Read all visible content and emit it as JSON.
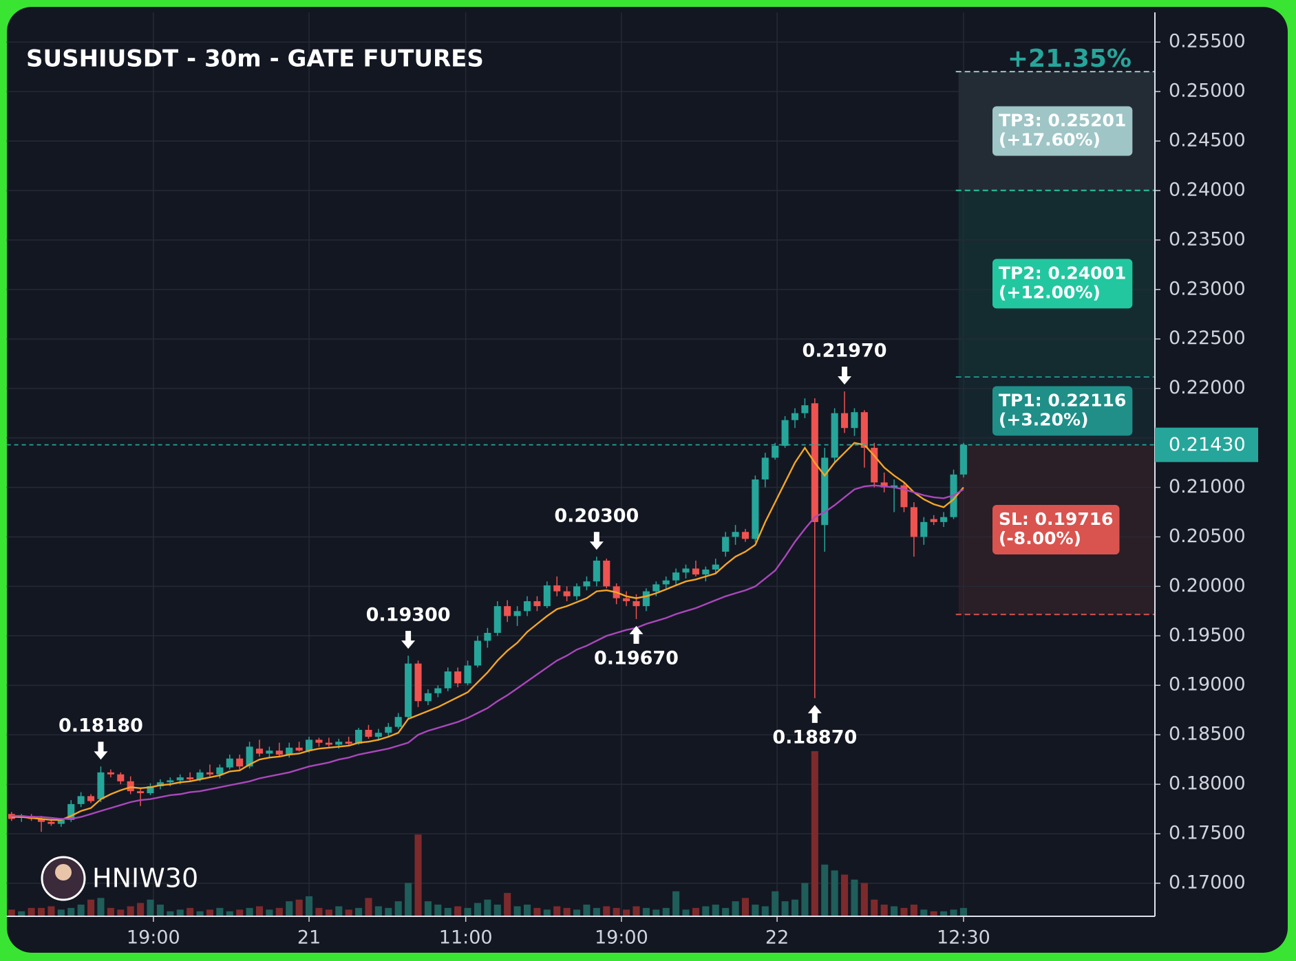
{
  "chart_data": {
    "type": "candlestick",
    "title": "SUSHIUSDT - 30m - GATE FUTURES",
    "target_gain": "+21.35%",
    "watermark": "HNIW30",
    "up_color": "#26a69a",
    "down_color": "#ef5350",
    "volume_up_color": "#1f5e5a",
    "volume_down_color": "#7d2a2c",
    "grid": true,
    "ylim": [
      0.16666,
      0.258
    ],
    "xlim": [
      -0.5,
      115.3
    ],
    "yticks": [
      {
        "value": 0.17,
        "label": "0.17000"
      },
      {
        "value": 0.175,
        "label": "0.17500"
      },
      {
        "value": 0.18,
        "label": "0.18000"
      },
      {
        "value": 0.185,
        "label": "0.18500"
      },
      {
        "value": 0.19,
        "label": "0.19000"
      },
      {
        "value": 0.195,
        "label": "0.19500"
      },
      {
        "value": 0.2,
        "label": "0.20000"
      },
      {
        "value": 0.205,
        "label": "0.20500"
      },
      {
        "value": 0.21,
        "label": "0.21000"
      },
      {
        "value": 0.215,
        "label": "0.21500"
      },
      {
        "value": 0.22,
        "label": "0.22000"
      },
      {
        "value": 0.225,
        "label": "0.22500"
      },
      {
        "value": 0.23,
        "label": "0.23000"
      },
      {
        "value": 0.235,
        "label": "0.23500"
      },
      {
        "value": 0.24,
        "label": "0.24000"
      },
      {
        "value": 0.245,
        "label": "0.24500"
      },
      {
        "value": 0.25,
        "label": "0.25000"
      },
      {
        "value": 0.255,
        "label": "0.25500"
      }
    ],
    "xticks": [
      {
        "value": 14.3,
        "label": "19:00"
      },
      {
        "value": 30,
        "label": "21"
      },
      {
        "value": 45.8,
        "label": "11:00"
      },
      {
        "value": 61.5,
        "label": "19:00"
      },
      {
        "value": 77.2,
        "label": "22"
      },
      {
        "value": 96,
        "label": "12:30"
      }
    ],
    "last_price": {
      "value": 0.2143,
      "label": "0.21430",
      "color": "#26a69a"
    },
    "levels": [
      {
        "value": 0.25201,
        "label": "TP3: 0.25201",
        "change": "(+17.60%)",
        "color": "#9fc5c6"
      },
      {
        "value": 0.24001,
        "label": "TP2: 0.24001",
        "change": "(+12.00%)",
        "color": "#22c7a0"
      },
      {
        "value": 0.22116,
        "label": "TP1: 0.22116",
        "change": "(+3.20%)",
        "color": "#1f8f88"
      },
      {
        "value": 0.19716,
        "label": "SL: 0.19716",
        "change": "(-8.00%)",
        "color": "#d9534f"
      }
    ],
    "annotations": [
      {
        "x": 9,
        "value": 0.1818,
        "label": "0.18180",
        "direction": "down"
      },
      {
        "x": 40,
        "value": 0.193,
        "label": "0.19300",
        "direction": "down"
      },
      {
        "x": 59,
        "value": 0.203,
        "label": "0.20300",
        "direction": "down"
      },
      {
        "x": 63,
        "value": 0.1967,
        "label": "0.19670",
        "direction": "up"
      },
      {
        "x": 84,
        "value": 0.2197,
        "label": "0.21970",
        "direction": "down"
      },
      {
        "x": 81,
        "value": 0.1887,
        "label": "0.18870",
        "direction": "up"
      }
    ],
    "ohlc": [
      [
        0.177,
        0.1772,
        0.1763,
        0.1765
      ],
      [
        0.1766,
        0.177,
        0.1762,
        0.1768
      ],
      [
        0.1768,
        0.177,
        0.1763,
        0.1765
      ],
      [
        0.1765,
        0.1768,
        0.1752,
        0.1762
      ],
      [
        0.1762,
        0.1765,
        0.1758,
        0.176
      ],
      [
        0.176,
        0.1766,
        0.1757,
        0.1764
      ],
      [
        0.1764,
        0.1784,
        0.1762,
        0.178
      ],
      [
        0.178,
        0.1792,
        0.1777,
        0.1788
      ],
      [
        0.1788,
        0.179,
        0.1781,
        0.1783
      ],
      [
        0.1785,
        0.1818,
        0.1782,
        0.1812
      ],
      [
        0.1812,
        0.1815,
        0.1807,
        0.181
      ],
      [
        0.181,
        0.1812,
        0.18,
        0.1803
      ],
      [
        0.1803,
        0.1808,
        0.179,
        0.1793
      ],
      [
        0.1793,
        0.1796,
        0.1778,
        0.1791
      ],
      [
        0.1791,
        0.1801,
        0.1789,
        0.1798
      ],
      [
        0.1798,
        0.1805,
        0.1795,
        0.1802
      ],
      [
        0.1802,
        0.1807,
        0.1798,
        0.1804
      ],
      [
        0.1804,
        0.181,
        0.18,
        0.1807
      ],
      [
        0.1807,
        0.1812,
        0.1803,
        0.1805
      ],
      [
        0.1805,
        0.1815,
        0.1803,
        0.1812
      ],
      [
        0.1812,
        0.182,
        0.1808,
        0.181
      ],
      [
        0.181,
        0.182,
        0.1806,
        0.1817
      ],
      [
        0.1817,
        0.183,
        0.1815,
        0.1826
      ],
      [
        0.1826,
        0.183,
        0.1815,
        0.1818
      ],
      [
        0.1818,
        0.1843,
        0.1816,
        0.1838
      ],
      [
        0.1836,
        0.1845,
        0.1828,
        0.1831
      ],
      [
        0.1831,
        0.1838,
        0.1826,
        0.1834
      ],
      [
        0.1834,
        0.1842,
        0.1828,
        0.183
      ],
      [
        0.183,
        0.1842,
        0.1827,
        0.1837
      ],
      [
        0.1837,
        0.1843,
        0.1833,
        0.1834
      ],
      [
        0.1834,
        0.1848,
        0.1832,
        0.1845
      ],
      [
        0.1845,
        0.1847,
        0.1838,
        0.1842
      ],
      [
        0.1842,
        0.1847,
        0.1838,
        0.184
      ],
      [
        0.184,
        0.1846,
        0.1836,
        0.1843
      ],
      [
        0.1843,
        0.1848,
        0.184,
        0.1841
      ],
      [
        0.1841,
        0.1857,
        0.184,
        0.1855
      ],
      [
        0.1855,
        0.186,
        0.1846,
        0.1848
      ],
      [
        0.1848,
        0.1856,
        0.1844,
        0.1852
      ],
      [
        0.1852,
        0.1862,
        0.1849,
        0.1858
      ],
      [
        0.1858,
        0.1872,
        0.1856,
        0.1868
      ],
      [
        0.1868,
        0.193,
        0.1866,
        0.1922
      ],
      [
        0.1922,
        0.1925,
        0.1878,
        0.1884
      ],
      [
        0.1884,
        0.1896,
        0.188,
        0.1892
      ],
      [
        0.1892,
        0.19,
        0.1888,
        0.1897
      ],
      [
        0.1897,
        0.1918,
        0.1894,
        0.1914
      ],
      [
        0.1914,
        0.1918,
        0.1898,
        0.1902
      ],
      [
        0.1902,
        0.1925,
        0.19,
        0.192
      ],
      [
        0.192,
        0.195,
        0.1918,
        0.1945
      ],
      [
        0.1945,
        0.1958,
        0.1938,
        0.1953
      ],
      [
        0.1953,
        0.1985,
        0.195,
        0.198
      ],
      [
        0.198,
        0.1986,
        0.1964,
        0.197
      ],
      [
        0.197,
        0.198,
        0.196,
        0.1975
      ],
      [
        0.1975,
        0.199,
        0.197,
        0.1985
      ],
      [
        0.1985,
        0.199,
        0.1975,
        0.198
      ],
      [
        0.198,
        0.2005,
        0.1978,
        0.2001
      ],
      [
        0.2001,
        0.201,
        0.199,
        0.1995
      ],
      [
        0.1995,
        0.2,
        0.1985,
        0.199
      ],
      [
        0.199,
        0.2003,
        0.1986,
        0.2
      ],
      [
        0.2,
        0.201,
        0.1996,
        0.2005
      ],
      [
        0.2005,
        0.203,
        0.2,
        0.2026
      ],
      [
        0.2026,
        0.2028,
        0.1998,
        0.2
      ],
      [
        0.2,
        0.2003,
        0.1982,
        0.1988
      ],
      [
        0.1988,
        0.1995,
        0.198,
        0.1985
      ],
      [
        0.1985,
        0.1992,
        0.1967,
        0.198
      ],
      [
        0.198,
        0.1998,
        0.1975,
        0.1995
      ],
      [
        0.1995,
        0.2005,
        0.199,
        0.2002
      ],
      [
        0.2002,
        0.201,
        0.1998,
        0.2006
      ],
      [
        0.2006,
        0.2018,
        0.2002,
        0.2014
      ],
      [
        0.2014,
        0.2022,
        0.2008,
        0.2018
      ],
      [
        0.2018,
        0.2026,
        0.201,
        0.2012
      ],
      [
        0.2012,
        0.202,
        0.2005,
        0.2017
      ],
      [
        0.2017,
        0.2028,
        0.2012,
        0.2022
      ],
      [
        0.2035,
        0.2055,
        0.203,
        0.205
      ],
      [
        0.205,
        0.2062,
        0.2042,
        0.2055
      ],
      [
        0.2055,
        0.2058,
        0.2045,
        0.2048
      ],
      [
        0.2048,
        0.2112,
        0.2045,
        0.2108
      ],
      [
        0.2108,
        0.2135,
        0.21,
        0.213
      ],
      [
        0.213,
        0.2145,
        0.2128,
        0.2142
      ],
      [
        0.2142,
        0.2172,
        0.214,
        0.2168
      ],
      [
        0.2168,
        0.218,
        0.216,
        0.2175
      ],
      [
        0.2175,
        0.219,
        0.217,
        0.2183
      ],
      [
        0.2185,
        0.219,
        0.1887,
        0.2065
      ],
      [
        0.2062,
        0.214,
        0.2035,
        0.213
      ],
      [
        0.213,
        0.218,
        0.2125,
        0.2175
      ],
      [
        0.2175,
        0.2197,
        0.2155,
        0.216
      ],
      [
        0.216,
        0.218,
        0.2152,
        0.2176
      ],
      [
        0.2176,
        0.2178,
        0.212,
        0.214
      ],
      [
        0.214,
        0.2145,
        0.21,
        0.2105
      ],
      [
        0.2105,
        0.2115,
        0.2095,
        0.21
      ],
      [
        0.21,
        0.2108,
        0.2075,
        0.2102
      ],
      [
        0.2102,
        0.2105,
        0.2075,
        0.208
      ],
      [
        0.208,
        0.2085,
        0.203,
        0.205
      ],
      [
        0.205,
        0.207,
        0.2042,
        0.2065
      ],
      [
        0.2068,
        0.2072,
        0.2062,
        0.2065
      ],
      [
        0.2065,
        0.2075,
        0.206,
        0.207
      ],
      [
        0.207,
        0.2118,
        0.2068,
        0.2113
      ],
      [
        0.2113,
        0.2145,
        0.211,
        0.2143
      ]
    ],
    "volume": [
      8,
      6,
      10,
      10,
      12,
      8,
      10,
      14,
      20,
      22,
      10,
      8,
      12,
      16,
      20,
      14,
      6,
      8,
      10,
      6,
      8,
      10,
      6,
      8,
      10,
      12,
      8,
      10,
      18,
      20,
      24,
      10,
      8,
      12,
      8,
      10,
      22,
      12,
      10,
      18,
      40,
      98,
      18,
      14,
      10,
      12,
      10,
      16,
      20,
      14,
      28,
      12,
      14,
      10,
      8,
      12,
      10,
      8,
      14,
      10,
      12,
      10,
      8,
      12,
      10,
      8,
      10,
      30,
      8,
      10,
      12,
      14,
      10,
      18,
      22,
      14,
      12,
      30,
      18,
      20,
      40,
      198,
      62,
      55,
      50,
      44,
      40,
      20,
      14,
      12,
      10,
      14,
      8,
      6,
      6,
      8,
      10
    ],
    "lines": [
      {
        "color": "#f5a623",
        "values": [
          0.1767,
          0.1767,
          0.1766,
          0.1765,
          0.1764,
          0.1764,
          0.1768,
          0.1773,
          0.1776,
          0.1785,
          0.179,
          0.1794,
          0.1797,
          0.1796,
          0.1797,
          0.1799,
          0.18,
          0.1802,
          0.1803,
          0.1805,
          0.1807,
          0.1809,
          0.1813,
          0.1814,
          0.182,
          0.1825,
          0.1827,
          0.1828,
          0.183,
          0.1831,
          0.1834,
          0.1836,
          0.1837,
          0.1838,
          0.1839,
          0.1842,
          0.1843,
          0.1845,
          0.1848,
          0.1852,
          0.1866,
          0.187,
          0.1874,
          0.1878,
          0.1883,
          0.1888,
          0.1893,
          0.1903,
          0.1913,
          0.1925,
          0.1935,
          0.1943,
          0.1954,
          0.1962,
          0.197,
          0.1977,
          0.198,
          0.1984,
          0.1988,
          0.1995,
          0.1996,
          0.1994,
          0.199,
          0.1988,
          0.199,
          0.1993,
          0.1997,
          0.2001,
          0.2005,
          0.2007,
          0.201,
          0.2013,
          0.2022,
          0.203,
          0.2035,
          0.2042,
          0.2065,
          0.2085,
          0.2105,
          0.2125,
          0.214,
          0.2125,
          0.2112,
          0.2125,
          0.2135,
          0.2145,
          0.2143,
          0.2132,
          0.212,
          0.2112,
          0.2105,
          0.2095,
          0.2088,
          0.2083,
          0.208,
          0.2088,
          0.21
        ]
      },
      {
        "color": "#ab47bc",
        "values": [
          0.1768,
          0.1768,
          0.1767,
          0.1767,
          0.1766,
          0.1765,
          0.1765,
          0.1767,
          0.177,
          0.1773,
          0.1776,
          0.1779,
          0.1782,
          0.1784,
          0.1785,
          0.1787,
          0.1789,
          0.179,
          0.1792,
          0.1793,
          0.1795,
          0.1797,
          0.1799,
          0.1801,
          0.1803,
          0.1806,
          0.1808,
          0.181,
          0.1812,
          0.1815,
          0.1818,
          0.182,
          0.1822,
          0.1825,
          0.1827,
          0.183,
          0.1832,
          0.1834,
          0.1836,
          0.1839,
          0.1842,
          0.185,
          0.1854,
          0.1857,
          0.186,
          0.1863,
          0.1867,
          0.1872,
          0.1877,
          0.1884,
          0.189,
          0.1897,
          0.1904,
          0.1911,
          0.1918,
          0.1925,
          0.193,
          0.1936,
          0.194,
          0.1945,
          0.195,
          0.1953,
          0.1956,
          0.1958,
          0.1962,
          0.1965,
          0.1968,
          0.1972,
          0.1975,
          0.1978,
          0.1982,
          0.1986,
          0.199,
          0.1993,
          0.1996,
          0.2,
          0.2008,
          0.2016,
          0.203,
          0.2045,
          0.2058,
          0.207,
          0.2075,
          0.2082,
          0.209,
          0.2098,
          0.2101,
          0.2102,
          0.2101,
          0.21,
          0.2098,
          0.2095,
          0.2092,
          0.209,
          0.2089,
          0.2092,
          0.2098
        ]
      }
    ]
  }
}
